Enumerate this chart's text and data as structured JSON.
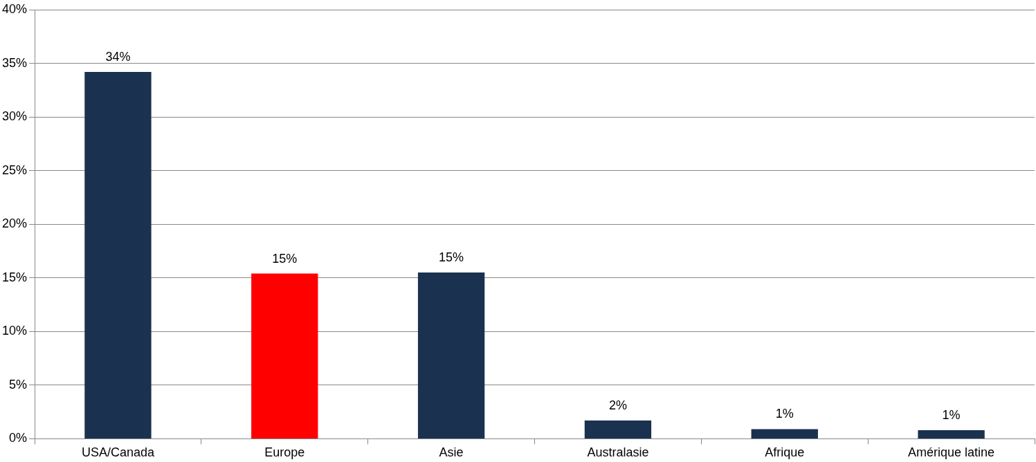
{
  "chart_data": {
    "type": "bar",
    "categories": [
      "USA/Canada",
      "Europe",
      "Asie",
      "Australasie",
      "Afrique",
      "Amérique latine"
    ],
    "values": [
      34.2,
      15.4,
      15.5,
      1.7,
      0.9,
      0.8
    ],
    "colors": [
      "#1a3150",
      "#ff0000",
      "#1a3150",
      "#1a3150",
      "#1a3150",
      "#1a3150"
    ],
    "value_labels": [
      "34%",
      "15%",
      "15%",
      "2%",
      "1%",
      "1%"
    ],
    "ylim": [
      0,
      40
    ],
    "yticks": [
      {
        "value": 0,
        "label": "0%"
      },
      {
        "value": 5,
        "label": "5%"
      },
      {
        "value": 10,
        "label": "10%"
      },
      {
        "value": 15,
        "label": "15%"
      },
      {
        "value": 20,
        "label": "20%"
      },
      {
        "value": 25,
        "label": "25%"
      },
      {
        "value": 30,
        "label": "30%"
      },
      {
        "value": 35,
        "label": "35%"
      },
      {
        "value": 40,
        "label": "40%"
      }
    ],
    "grid": "y",
    "legend": false
  }
}
